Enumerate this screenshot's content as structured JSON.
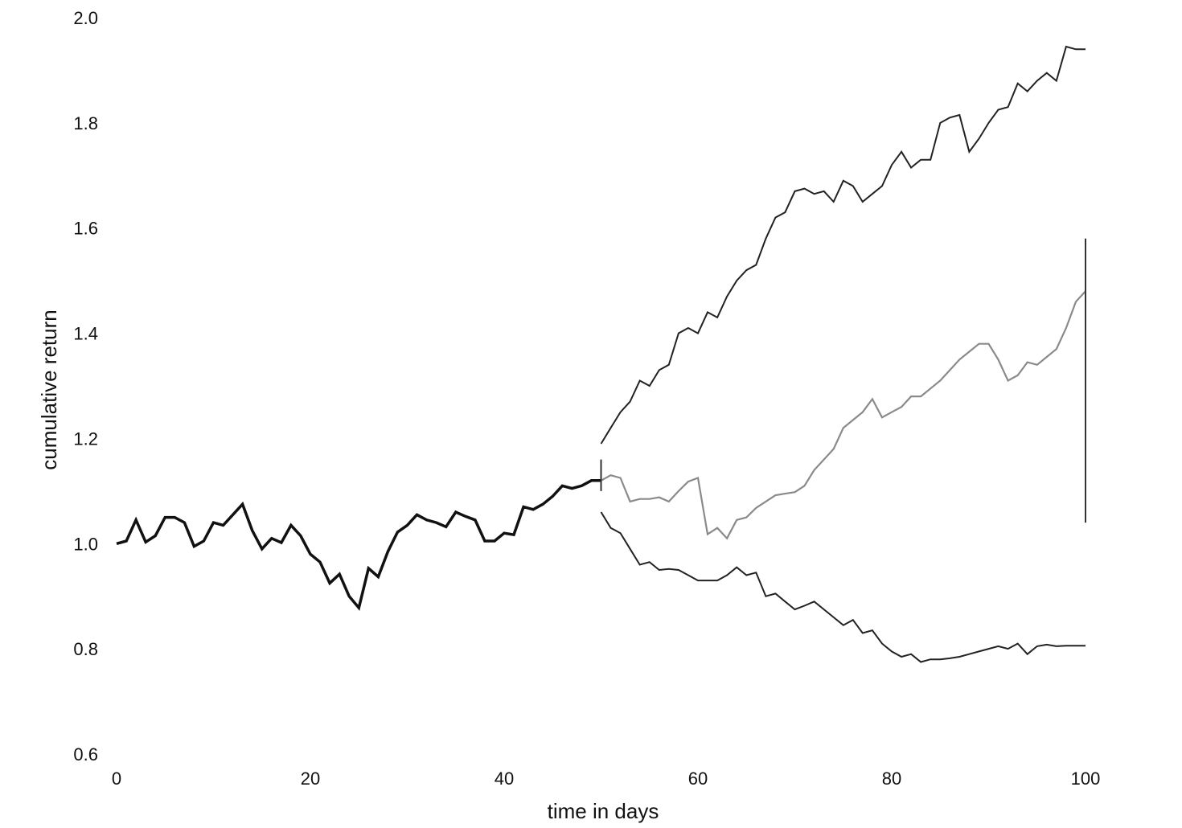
{
  "chart_data": {
    "type": "line",
    "title": "",
    "xlabel": "time in days",
    "ylabel": "cumulative return",
    "xlim": [
      0,
      100
    ],
    "ylim": [
      0.6,
      2.0
    ],
    "x_ticks": [
      0,
      20,
      40,
      60,
      80,
      100
    ],
    "y_ticks": [
      0.6,
      0.8,
      1.0,
      1.2,
      1.4,
      1.6,
      1.8,
      2.0
    ],
    "x_tick_labels": [
      "0",
      "20",
      "40",
      "60",
      "80",
      "100"
    ],
    "y_tick_labels": [
      "0.6",
      "0.8",
      "1.0",
      "1.2",
      "1.4",
      "1.6",
      "1.8",
      "2.0"
    ],
    "grid": false,
    "colors": {
      "history": "#111111",
      "scenario": "#222222",
      "middle_scenario": "#8a8a8a",
      "bar": "#333333"
    },
    "series": [
      {
        "id": "history",
        "color": "#111111",
        "width": 3.5,
        "x": [
          0,
          1,
          2,
          3,
          4,
          5,
          6,
          7,
          8,
          9,
          10,
          11,
          12,
          13,
          14,
          15,
          16,
          17,
          18,
          19,
          20,
          21,
          22,
          23,
          24,
          25,
          26,
          27,
          28,
          29,
          30,
          31,
          32,
          33,
          34,
          35,
          36,
          37,
          38,
          39,
          40,
          41,
          42,
          43,
          44,
          45,
          46,
          47,
          48,
          49,
          50
        ],
        "y": [
          1.0,
          1.005,
          1.045,
          1.003,
          1.015,
          1.05,
          1.05,
          1.04,
          0.995,
          1.005,
          1.04,
          1.035,
          1.055,
          1.075,
          1.025,
          0.99,
          1.01,
          1.002,
          1.035,
          1.015,
          0.98,
          0.965,
          0.925,
          0.942,
          0.9,
          0.878,
          0.953,
          0.937,
          0.985,
          1.022,
          1.035,
          1.055,
          1.045,
          1.04,
          1.032,
          1.06,
          1.052,
          1.045,
          1.005,
          1.005,
          1.02,
          1.017,
          1.07,
          1.065,
          1.075,
          1.09,
          1.11,
          1.105,
          1.11,
          1.12,
          1.12
        ]
      },
      {
        "id": "upper-scenario",
        "color": "#222222",
        "width": 2,
        "x": [
          50,
          51,
          52,
          53,
          54,
          55,
          56,
          57,
          58,
          59,
          60,
          61,
          62,
          63,
          64,
          65,
          66,
          67,
          68,
          69,
          70,
          71,
          72,
          73,
          74,
          75,
          76,
          77,
          78,
          79,
          80,
          81,
          82,
          83,
          84,
          85,
          86,
          87,
          88,
          89,
          90,
          91,
          92,
          93,
          94,
          95,
          96,
          97,
          98,
          99,
          100
        ],
        "y": [
          1.19,
          1.22,
          1.25,
          1.27,
          1.31,
          1.3,
          1.33,
          1.34,
          1.4,
          1.41,
          1.4,
          1.44,
          1.43,
          1.47,
          1.5,
          1.52,
          1.53,
          1.58,
          1.62,
          1.63,
          1.67,
          1.675,
          1.665,
          1.67,
          1.65,
          1.69,
          1.68,
          1.65,
          1.665,
          1.68,
          1.72,
          1.745,
          1.715,
          1.73,
          1.73,
          1.8,
          1.81,
          1.815,
          1.745,
          1.77,
          1.8,
          1.825,
          1.83,
          1.875,
          1.86,
          1.88,
          1.895,
          1.88,
          1.945,
          1.94,
          1.94
        ]
      },
      {
        "id": "middle-scenario",
        "color": "#8a8a8a",
        "width": 2.2,
        "x": [
          50,
          51,
          52,
          53,
          54,
          55,
          56,
          57,
          58,
          59,
          60,
          61,
          62,
          63,
          64,
          65,
          66,
          67,
          68,
          69,
          70,
          71,
          72,
          73,
          74,
          75,
          76,
          77,
          78,
          79,
          80,
          81,
          82,
          83,
          84,
          85,
          86,
          87,
          88,
          89,
          90,
          91,
          92,
          93,
          94,
          95,
          96,
          97,
          98,
          99,
          100
        ],
        "y": [
          1.12,
          1.13,
          1.125,
          1.08,
          1.085,
          1.085,
          1.088,
          1.08,
          1.1,
          1.118,
          1.125,
          1.018,
          1.03,
          1.01,
          1.045,
          1.05,
          1.068,
          1.08,
          1.092,
          1.095,
          1.098,
          1.11,
          1.14,
          1.16,
          1.18,
          1.22,
          1.235,
          1.25,
          1.275,
          1.24,
          1.25,
          1.26,
          1.28,
          1.28,
          1.295,
          1.31,
          1.33,
          1.35,
          1.365,
          1.38,
          1.38,
          1.35,
          1.31,
          1.32,
          1.345,
          1.34,
          1.355,
          1.37,
          1.41,
          1.46,
          1.48
        ]
      },
      {
        "id": "lower-scenario",
        "color": "#222222",
        "width": 2,
        "x": [
          50,
          51,
          52,
          53,
          54,
          55,
          56,
          57,
          58,
          59,
          60,
          61,
          62,
          63,
          64,
          65,
          66,
          67,
          68,
          69,
          70,
          71,
          72,
          73,
          74,
          75,
          76,
          77,
          78,
          79,
          80,
          81,
          82,
          83,
          84,
          85,
          86,
          87,
          88,
          89,
          90,
          91,
          92,
          93,
          94,
          95,
          96,
          97,
          98,
          99,
          100
        ],
        "y": [
          1.06,
          1.03,
          1.02,
          0.99,
          0.96,
          0.965,
          0.95,
          0.952,
          0.95,
          0.94,
          0.93,
          0.93,
          0.93,
          0.94,
          0.955,
          0.94,
          0.945,
          0.9,
          0.905,
          0.89,
          0.875,
          0.882,
          0.89,
          0.875,
          0.86,
          0.845,
          0.855,
          0.83,
          0.835,
          0.81,
          0.795,
          0.785,
          0.79,
          0.775,
          0.78,
          0.78,
          0.782,
          0.785,
          0.79,
          0.795,
          0.8,
          0.805,
          0.8,
          0.81,
          0.79,
          0.805,
          0.808,
          0.805,
          0.806,
          0.806,
          0.806
        ]
      }
    ],
    "dividers": [
      {
        "id": "split-marker",
        "x": 50,
        "y_from": 1.1,
        "y_to": 1.16
      },
      {
        "id": "range-marker",
        "x": 100,
        "y_from": 1.04,
        "y_to": 1.58
      }
    ]
  }
}
